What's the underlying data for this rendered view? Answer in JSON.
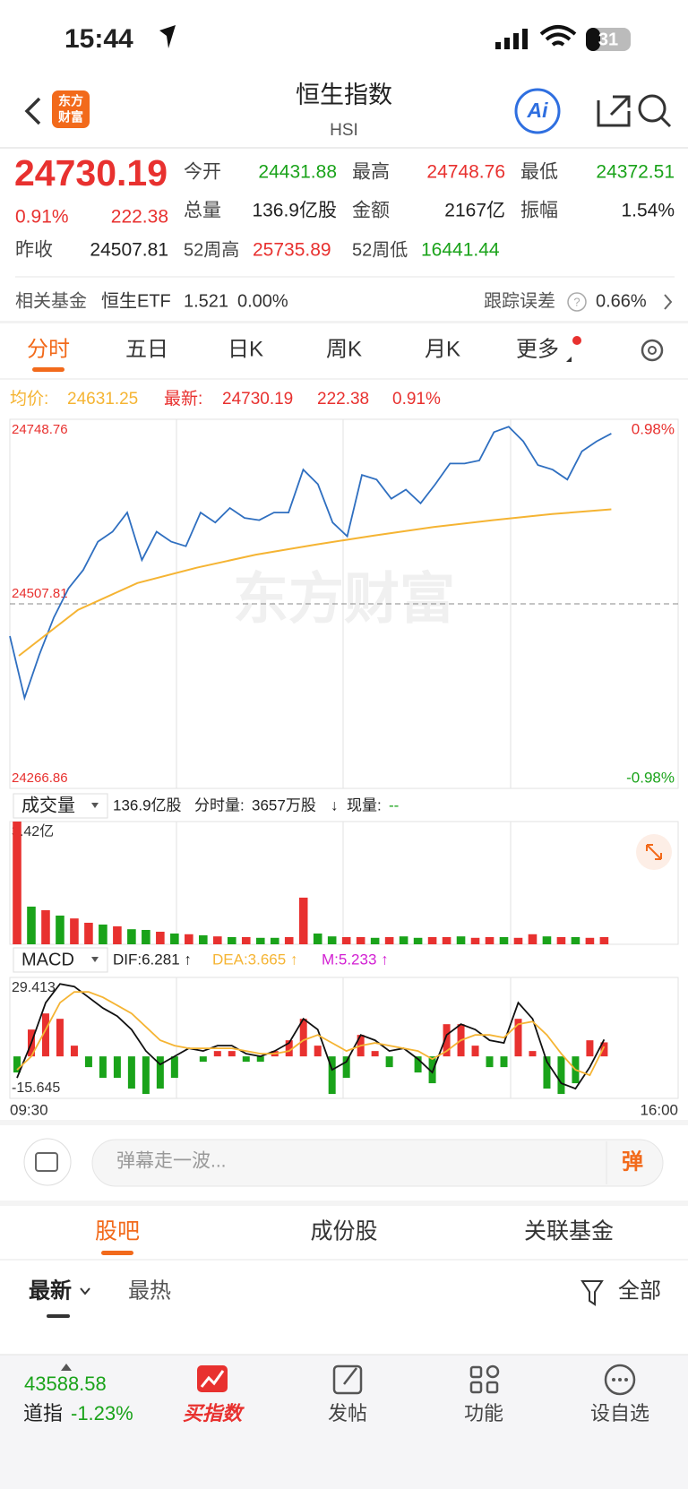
{
  "status": {
    "time": "15:44",
    "battery": "31"
  },
  "header": {
    "logo_line1": "东方",
    "logo_line2": "财富",
    "title": "恒生指数",
    "subtitle": "HSI",
    "ai": "Ai"
  },
  "quote": {
    "price": "24730.19",
    "change_pct": "0.91%",
    "change": "222.38",
    "open_label": "今开",
    "open": "24431.88",
    "high_label": "最高",
    "high": "24748.76",
    "low_label": "最低",
    "low": "24372.51",
    "volume_label": "总量",
    "volume": "136.9亿股",
    "amount_label": "金额",
    "amount": "2167亿",
    "amplitude_label": "振幅",
    "amplitude": "1.54%",
    "prev_close_label": "昨收",
    "prev_close": "24507.81",
    "week52_high_label": "52周高",
    "week52_high": "25735.89",
    "week52_low_label": "52周低",
    "week52_low": "16441.44"
  },
  "fund": {
    "label": "相关基金",
    "name": "恒生ETF",
    "price": "1.521",
    "change": "0.00%",
    "tracking_label": "跟踪误差",
    "tracking": "0.66%"
  },
  "tabs": [
    "分时",
    "五日",
    "日K",
    "周K",
    "月K",
    "更多"
  ],
  "chart_data": [
    {
      "type": "line",
      "avg_label": "均价:",
      "avg_value": "24631.25",
      "latest_label": "最新:",
      "latest_value": "24730.19",
      "latest_change": "222.38",
      "latest_pct": "0.91%",
      "watermark": "东方财富",
      "ylim": [
        24266.86,
        24748.76
      ],
      "yticks": [
        24748.76,
        24507.81,
        24266.86
      ],
      "y2lim": [
        -0.98,
        0.98
      ],
      "y2ticks": [
        {
          "value": 0.98,
          "label": "0.98%"
        },
        {
          "value": -0.98,
          "label": "-0.98%"
        }
      ],
      "series": [
        {
          "color": "#2f6fc0",
          "values": [
            24465.7,
            24385,
            24441,
            24490,
            24528,
            24552,
            24589,
            24602,
            24627,
            24565,
            24602,
            24589,
            24583,
            24627,
            24614,
            24633,
            24620,
            24617,
            24627,
            24627,
            24683,
            24664,
            24614,
            24596,
            24676,
            24670,
            24645,
            24657,
            24639,
            24664,
            24691,
            24691,
            24695,
            24732,
            24739,
            24720,
            24689,
            24683,
            24670,
            24707,
            24720,
            24730.19
          ]
        },
        {
          "color": "#f5b433",
          "values": [
            24440,
            24500,
            24535,
            24555,
            24572,
            24585,
            24597,
            24608,
            24617,
            24625,
            24631.25
          ]
        }
      ]
    },
    {
      "type": "bar",
      "title": "成交量",
      "total": "136.9亿股",
      "period_label": "分时量:",
      "period_value": "3657万股",
      "arrow": "↓",
      "current_label": "现量:",
      "current_value": "--",
      "ylim": [
        0,
        3.42
      ],
      "yticks": [
        {
          "value": 3.42,
          "label": "3.42亿"
        }
      ],
      "values": [
        3.42,
        1.05,
        0.95,
        0.8,
        0.72,
        0.6,
        0.55,
        0.5,
        0.42,
        0.4,
        0.35,
        0.3,
        0.28,
        0.25,
        0.22,
        0.2,
        0.2,
        0.18,
        0.18,
        0.2,
        1.3,
        0.3,
        0.22,
        0.2,
        0.2,
        0.18,
        0.2,
        0.22,
        0.18,
        0.2,
        0.2,
        0.22,
        0.18,
        0.2,
        0.2,
        0.18,
        0.28,
        0.22,
        0.2,
        0.2,
        0.18,
        0.2
      ],
      "bar_colors": [
        "#e8312f",
        "#1aa31a",
        "#e8312f",
        "#1aa31a",
        "#e8312f",
        "#e8312f",
        "#1aa31a",
        "#e8312f",
        "#1aa31a",
        "#1aa31a",
        "#e8312f",
        "#1aa31a",
        "#e8312f",
        "#1aa31a",
        "#e8312f",
        "#1aa31a",
        "#e8312f",
        "#1aa31a",
        "#1aa31a",
        "#e8312f",
        "#e8312f",
        "#1aa31a",
        "#1aa31a",
        "#e8312f",
        "#e8312f",
        "#1aa31a",
        "#e8312f",
        "#1aa31a",
        "#1aa31a",
        "#e8312f",
        "#e8312f",
        "#1aa31a",
        "#e8312f",
        "#e8312f",
        "#1aa31a",
        "#e8312f",
        "#e8312f",
        "#1aa31a",
        "#e8312f",
        "#1aa31a",
        "#e8312f",
        "#e8312f"
      ]
    },
    {
      "type": "macd",
      "title": "MACD",
      "dif_label": "DIF:6.281 ↑",
      "dea_label": "DEA:3.665 ↑",
      "m_label": "M:5.233 ↑",
      "ylim": [
        -15.645,
        29.413
      ],
      "yticks": [
        29.413,
        -15.645
      ],
      "xlabels": [
        "09:30",
        "16:00"
      ],
      "up_color": "#e8312f",
      "down_color": "#1aa31a",
      "series": [
        {
          "color": "#111111",
          "values": [
            -8,
            5,
            20,
            27,
            26,
            22,
            18,
            15,
            10,
            2,
            -3,
            0,
            3,
            2,
            4,
            4,
            1,
            0,
            2,
            5,
            14,
            10,
            -5,
            -2,
            8,
            6,
            2,
            3,
            -1,
            -6,
            8,
            12,
            10,
            6,
            5,
            20,
            14,
            -2,
            -10,
            -12,
            -4,
            6.281
          ]
        },
        {
          "color": "#f5b433",
          "values": [
            -5,
            0,
            10,
            20,
            24,
            24,
            22,
            19,
            16,
            11,
            6,
            4,
            3,
            3,
            3,
            3,
            2,
            1,
            1,
            2,
            6,
            8,
            5,
            2,
            4,
            5,
            4,
            3,
            2,
            -1,
            2,
            6,
            8,
            8,
            7,
            12,
            13,
            8,
            1,
            -5,
            -7,
            3.665
          ]
        }
      ],
      "values": [
        -6,
        10,
        16,
        14,
        4,
        -4,
        -8,
        -8,
        -12,
        -14,
        -12,
        -8,
        0,
        -2,
        2,
        2,
        -2,
        -2,
        2,
        6,
        14,
        4,
        -14,
        -8,
        8,
        2,
        -4,
        0,
        -6,
        -10,
        12,
        12,
        4,
        -4,
        -4,
        14,
        2,
        -12,
        -14,
        -10,
        6,
        5.233
      ]
    }
  ],
  "comment": {
    "placeholder": "弹幕走一波...",
    "send": "弹"
  },
  "community": {
    "tabs": [
      "股吧",
      "成份股",
      "关联基金"
    ],
    "sort_latest": "最新",
    "sort_hot": "最热",
    "filter": "全部"
  },
  "bottom_nav": {
    "dow_value": "43588.58",
    "dow_label": "道指",
    "dow_change": "-1.23%",
    "buy": "买指数",
    "post": "发帖",
    "func": "功能",
    "watch": "设自选"
  }
}
